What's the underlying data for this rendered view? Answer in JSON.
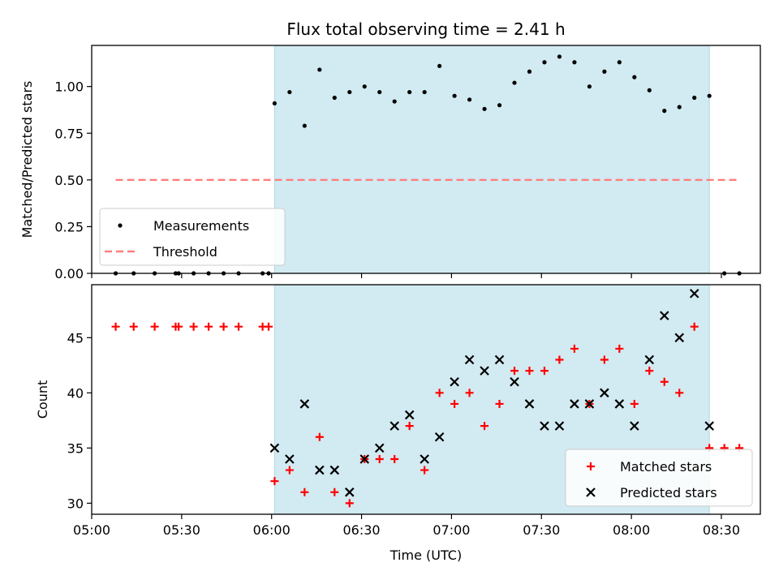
{
  "chart_data": {
    "title": "Flux total observing time = 2.41 h",
    "xlabel": "Time (UTC)",
    "x_ticks": [
      "05:00",
      "05:30",
      "06:00",
      "06:30",
      "07:00",
      "07:30",
      "08:00",
      "08:30"
    ],
    "x_tick_minutes": [
      300,
      330,
      360,
      390,
      420,
      450,
      480,
      510
    ],
    "xlim_minutes": [
      300,
      523
    ],
    "colors": {
      "shade": "#add8e6",
      "measurement": "#000000",
      "threshold": "#ff7f7f",
      "matched": "#ff0000",
      "predicted": "#000000"
    },
    "observing_window_minutes": [
      361,
      506
    ],
    "panels": [
      {
        "type": "scatter",
        "ylabel": "Matched/Predicted stars",
        "ylim": [
          0,
          1.22
        ],
        "y_ticks": [
          "0.00",
          "0.25",
          "0.50",
          "0.75",
          "1.00"
        ],
        "y_tick_values": [
          0,
          0.25,
          0.5,
          0.75,
          1.0
        ],
        "legend_position": "lower-left",
        "series": [
          {
            "name": "Measurements",
            "marker": "dot",
            "x": [
              308,
              314,
              321,
              328,
              329,
              334,
              339,
              344,
              349,
              357,
              359,
              361,
              366,
              371,
              376,
              381,
              386,
              391,
              396,
              401,
              406,
              411,
              416,
              421,
              426,
              431,
              436,
              441,
              446,
              451,
              456,
              461,
              466,
              471,
              476,
              481,
              486,
              491,
              496,
              501,
              506,
              511,
              516
            ],
            "y": [
              0,
              0,
              0,
              0,
              0,
              0,
              0,
              0,
              0,
              0,
              0,
              0.91,
              0.97,
              0.79,
              1.09,
              0.94,
              0.97,
              1.0,
              0.97,
              0.92,
              0.97,
              0.97,
              1.11,
              0.95,
              0.93,
              0.88,
              0.9,
              1.02,
              1.08,
              1.13,
              1.16,
              1.13,
              1.0,
              1.08,
              1.13,
              1.05,
              0.98,
              0.87,
              0.89,
              0.94,
              0.95,
              0,
              0
            ]
          },
          {
            "name": "Threshold",
            "marker": "dashed-line",
            "x": [
              308,
              516
            ],
            "y": [
              0.5,
              0.5
            ]
          }
        ]
      },
      {
        "type": "scatter",
        "ylabel": "Count",
        "ylim": [
          29,
          49.8
        ],
        "y_ticks": [
          "30",
          "35",
          "40",
          "45"
        ],
        "y_tick_values": [
          30,
          35,
          40,
          45
        ],
        "legend_position": "lower-right",
        "series": [
          {
            "name": "Matched stars",
            "marker": "plus",
            "x": [
              308,
              314,
              321,
              328,
              329,
              334,
              339,
              344,
              349,
              357,
              359,
              361,
              366,
              371,
              376,
              381,
              386,
              391,
              396,
              401,
              406,
              411,
              416,
              421,
              426,
              431,
              436,
              441,
              446,
              451,
              456,
              461,
              466,
              471,
              476,
              481,
              486,
              491,
              496,
              501,
              506,
              511,
              516
            ],
            "y": [
              46,
              46,
              46,
              46,
              46,
              46,
              46,
              46,
              46,
              46,
              46,
              32,
              33,
              31,
              36,
              31,
              30,
              34,
              34,
              34,
              37,
              33,
              40,
              39,
              40,
              37,
              39,
              42,
              42,
              42,
              43,
              44,
              39,
              43,
              44,
              39,
              42,
              41,
              40,
              46,
              35,
              35,
              35
            ]
          },
          {
            "name": "Predicted stars",
            "marker": "x",
            "x": [
              361,
              366,
              371,
              376,
              381,
              386,
              391,
              396,
              401,
              406,
              411,
              416,
              421,
              426,
              431,
              436,
              441,
              446,
              451,
              456,
              461,
              466,
              471,
              476,
              481,
              486,
              491,
              496,
              501,
              506
            ],
            "y": [
              35,
              34,
              39,
              33,
              33,
              31,
              34,
              35,
              37,
              38,
              34,
              36,
              41,
              43,
              42,
              43,
              41,
              39,
              37,
              37,
              39,
              39,
              40,
              39,
              37,
              43,
              47,
              45,
              49,
              37
            ]
          }
        ]
      }
    ]
  }
}
